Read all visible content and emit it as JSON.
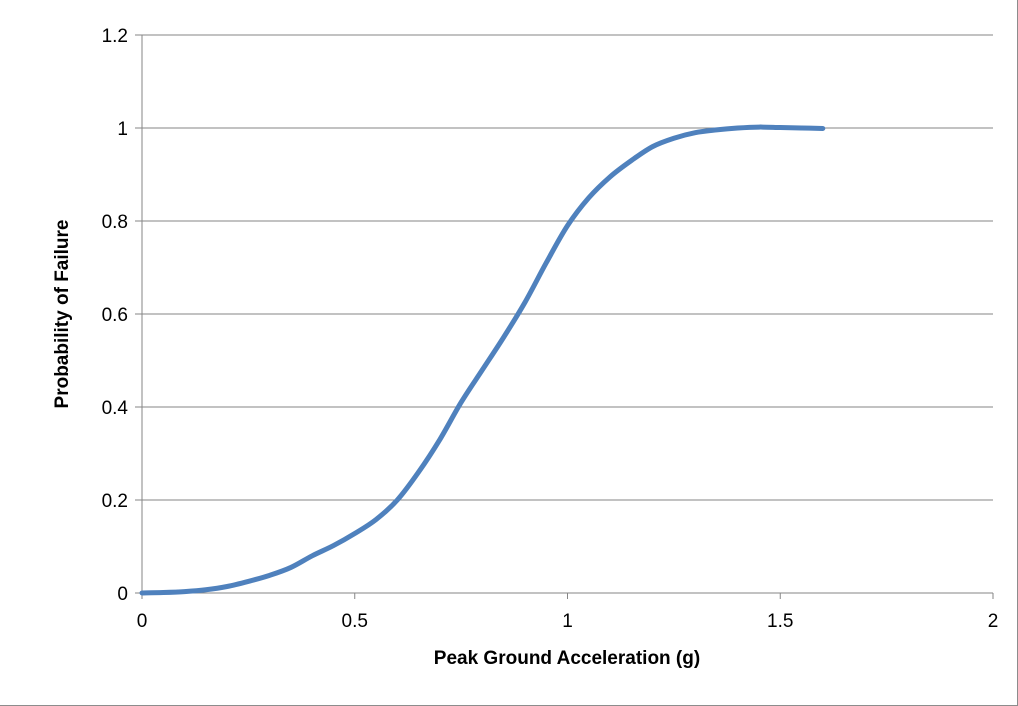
{
  "chart_data": {
    "type": "line",
    "title": "",
    "xlabel": "Peak Ground Acceleration (g)",
    "ylabel": "Probability of Failure",
    "xlim": [
      0,
      2
    ],
    "ylim": [
      0,
      1.2
    ],
    "x_ticks": [
      "0",
      "0.5",
      "1",
      "1.5",
      "2"
    ],
    "y_ticks": [
      "0",
      "0.2",
      "0.4",
      "0.6",
      "0.8",
      "1",
      "1.2"
    ],
    "grid": "horizontal",
    "legend": "none",
    "series": [
      {
        "color": "#4f81bd",
        "x": [
          0,
          0.05,
          0.1,
          0.15,
          0.2,
          0.25,
          0.3,
          0.35,
          0.4,
          0.45,
          0.5,
          0.55,
          0.6,
          0.65,
          0.7,
          0.75,
          0.8,
          0.85,
          0.9,
          0.95,
          1.0,
          1.05,
          1.1,
          1.15,
          1.2,
          1.25,
          1.3,
          1.35,
          1.4,
          1.45,
          1.5,
          1.55,
          1.6
        ],
        "y": [
          0,
          0.001,
          0.003,
          0.007,
          0.014,
          0.025,
          0.038,
          0.055,
          0.08,
          0.102,
          0.128,
          0.158,
          0.2,
          0.26,
          0.33,
          0.41,
          0.48,
          0.55,
          0.625,
          0.71,
          0.79,
          0.85,
          0.895,
          0.93,
          0.96,
          0.978,
          0.99,
          0.996,
          1.0,
          1.002,
          1.001,
          1.0,
          0.999
        ]
      }
    ]
  }
}
